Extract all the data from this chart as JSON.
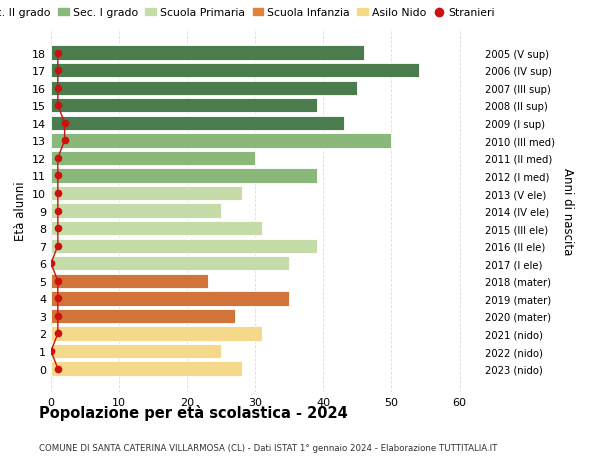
{
  "ages": [
    18,
    17,
    16,
    15,
    14,
    13,
    12,
    11,
    10,
    9,
    8,
    7,
    6,
    5,
    4,
    3,
    2,
    1,
    0
  ],
  "values": [
    46,
    54,
    45,
    39,
    43,
    50,
    30,
    39,
    28,
    25,
    31,
    39,
    35,
    23,
    35,
    27,
    31,
    25,
    28
  ],
  "stranieri": [
    1,
    1,
    1,
    1,
    2,
    2,
    1,
    1,
    1,
    1,
    1,
    1,
    0,
    1,
    1,
    1,
    1,
    0,
    1
  ],
  "bar_colors": [
    "#4a7c4e",
    "#4a7c4e",
    "#4a7c4e",
    "#4a7c4e",
    "#4a7c4e",
    "#8ab87a",
    "#8ab87a",
    "#8ab87a",
    "#c5dba8",
    "#c5dba8",
    "#c5dba8",
    "#c5dba8",
    "#c5dba8",
    "#d2733a",
    "#d2733a",
    "#d2733a",
    "#f5d98b",
    "#f5d98b",
    "#f5d98b"
  ],
  "right_labels": [
    "2005 (V sup)",
    "2006 (IV sup)",
    "2007 (III sup)",
    "2008 (II sup)",
    "2009 (I sup)",
    "2010 (III med)",
    "2011 (II med)",
    "2012 (I med)",
    "2013 (V ele)",
    "2014 (IV ele)",
    "2015 (III ele)",
    "2016 (II ele)",
    "2017 (I ele)",
    "2018 (mater)",
    "2019 (mater)",
    "2020 (mater)",
    "2021 (nido)",
    "2022 (nido)",
    "2023 (nido)"
  ],
  "legend_labels": [
    "Sec. II grado",
    "Sec. I grado",
    "Scuola Primaria",
    "Scuola Infanzia",
    "Asilo Nido",
    "Stranieri"
  ],
  "legend_colors": [
    "#4a7c4e",
    "#8ab87a",
    "#c5dba8",
    "#e0833a",
    "#f5d98b",
    "#cc1111"
  ],
  "title": "Popolazione per età scolastica - 2024",
  "subtitle": "COMUNE DI SANTA CATERINA VILLARMOSA (CL) - Dati ISTAT 1° gennaio 2024 - Elaborazione TUTTITALIA.IT",
  "ylabel": "Età alunni",
  "right_ylabel": "Anni di nascita",
  "xlim": [
    0,
    63
  ],
  "xticks": [
    0,
    10,
    20,
    30,
    40,
    50,
    60
  ],
  "background_color": "#ffffff",
  "bar_height": 0.82,
  "stranieri_color": "#cc1111",
  "grid_color": "#dddddd"
}
